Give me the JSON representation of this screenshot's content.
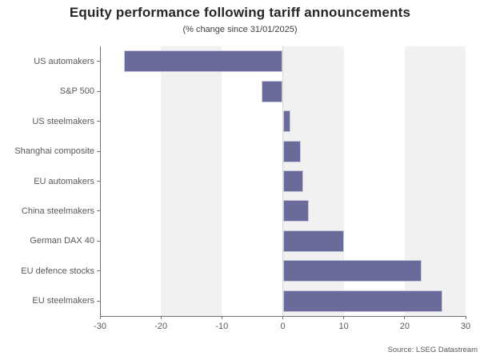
{
  "header": {
    "title": "Equity performance following tariff announcements",
    "subtitle": "(% change since 31/01/2025)"
  },
  "footer": {
    "source": "Source: LSEG Datastream"
  },
  "chart_data": {
    "type": "bar",
    "orientation": "horizontal",
    "title": "Equity performance following tariff announcements",
    "subtitle": "(% change since 31/01/2025)",
    "categories": [
      "US automakers",
      "S&P 500",
      "US steelmakers",
      "Shanghai composite",
      "EU automakers",
      "China steelmakers",
      "German DAX 40",
      "EU defence stocks",
      "EU steelmakers"
    ],
    "values": [
      -26,
      -3.5,
      1.3,
      3.0,
      3.3,
      4.3,
      10.0,
      22.8,
      26.2
    ],
    "xlabel": "",
    "ylabel": "",
    "xlim": [
      -30,
      30
    ],
    "xticks": [
      -30,
      -20,
      -10,
      0,
      10,
      20,
      30
    ],
    "grid": "alternating vertical bands, gray on [-20,-10], [0,10], [20,30]",
    "legend": "none",
    "bar_color": "#6a6a9b",
    "bar_edge_color": "#c8c8dc",
    "band_color": "#f1f1f1",
    "axis_color": "#737373",
    "tick_label_color": "#595959",
    "source": "Source: LSEG Datastream"
  }
}
